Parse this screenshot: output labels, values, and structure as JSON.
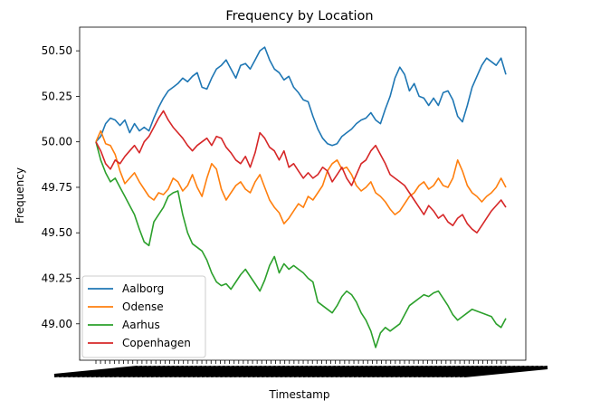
{
  "chart_data": {
    "type": "line",
    "title": "Frequency by Location",
    "xlabel": "Timestamp",
    "ylabel": "Frequency",
    "ylim": [
      48.8,
      50.63
    ],
    "yticks": [
      "49.00",
      "49.25",
      "49.50",
      "49.75",
      "50.00",
      "50.25",
      "50.50"
    ],
    "x_tick_labels_note": "dense unreadable timestamp tick labels",
    "grid": false,
    "legend_position": "lower-left",
    "series": [
      {
        "name": "Aalborg",
        "color": "#1f77b4",
        "values": [
          50.0,
          50.03,
          50.1,
          50.13,
          50.12,
          50.09,
          50.12,
          50.05,
          50.1,
          50.06,
          50.08,
          50.06,
          50.13,
          50.19,
          50.24,
          50.28,
          50.3,
          50.32,
          50.35,
          50.33,
          50.36,
          50.38,
          50.3,
          50.29,
          50.35,
          50.4,
          50.42,
          50.45,
          50.4,
          50.35,
          50.42,
          50.43,
          50.4,
          50.45,
          50.5,
          50.52,
          50.45,
          50.4,
          50.38,
          50.34,
          50.36,
          50.3,
          50.27,
          50.23,
          50.22,
          50.14,
          50.07,
          50.02,
          49.99,
          49.98,
          49.99,
          50.03,
          50.05,
          50.07,
          50.1,
          50.12,
          50.13,
          50.16,
          50.12,
          50.1,
          50.18,
          50.25,
          50.35,
          50.41,
          50.37,
          50.28,
          50.32,
          50.25,
          50.24,
          50.2,
          50.24,
          50.2,
          50.27,
          50.28,
          50.23,
          50.14,
          50.11,
          50.2,
          50.3,
          50.36,
          50.42,
          50.46,
          50.44,
          50.42,
          50.46,
          50.37
        ]
      },
      {
        "name": "Odense",
        "color": "#ff7f0e",
        "values": [
          50.0,
          50.06,
          49.99,
          49.98,
          49.93,
          49.84,
          49.77,
          49.8,
          49.83,
          49.78,
          49.74,
          49.7,
          49.68,
          49.72,
          49.71,
          49.74,
          49.8,
          49.78,
          49.73,
          49.76,
          49.82,
          49.75,
          49.7,
          49.8,
          49.88,
          49.85,
          49.74,
          49.68,
          49.72,
          49.76,
          49.78,
          49.74,
          49.72,
          49.78,
          49.82,
          49.75,
          49.68,
          49.64,
          49.61,
          49.55,
          49.58,
          49.62,
          49.66,
          49.64,
          49.7,
          49.68,
          49.72,
          49.76,
          49.84,
          49.88,
          49.9,
          49.85,
          49.86,
          49.82,
          49.76,
          49.73,
          49.75,
          49.78,
          49.72,
          49.7,
          49.67,
          49.63,
          49.6,
          49.62,
          49.66,
          49.7,
          49.72,
          49.76,
          49.78,
          49.74,
          49.76,
          49.8,
          49.76,
          49.75,
          49.8,
          49.9,
          49.84,
          49.76,
          49.72,
          49.7,
          49.67,
          49.7,
          49.72,
          49.75,
          49.8,
          49.75
        ]
      },
      {
        "name": "Aarhus",
        "color": "#2ca02c",
        "values": [
          50.0,
          49.9,
          49.83,
          49.78,
          49.8,
          49.75,
          49.7,
          49.65,
          49.6,
          49.52,
          49.45,
          49.43,
          49.56,
          49.6,
          49.64,
          49.7,
          49.72,
          49.73,
          49.6,
          49.5,
          49.44,
          49.42,
          49.4,
          49.35,
          49.28,
          49.23,
          49.21,
          49.22,
          49.19,
          49.23,
          49.27,
          49.3,
          49.26,
          49.22,
          49.18,
          49.24,
          49.32,
          49.37,
          49.28,
          49.33,
          49.3,
          49.32,
          49.3,
          49.28,
          49.25,
          49.23,
          49.12,
          49.1,
          49.08,
          49.06,
          49.1,
          49.15,
          49.18,
          49.16,
          49.12,
          49.06,
          49.02,
          48.96,
          48.87,
          48.95,
          48.98,
          48.96,
          48.98,
          49.0,
          49.05,
          49.1,
          49.12,
          49.14,
          49.16,
          49.15,
          49.17,
          49.18,
          49.14,
          49.1,
          49.05,
          49.02,
          49.04,
          49.06,
          49.08,
          49.07,
          49.06,
          49.05,
          49.04,
          49.0,
          48.98,
          49.03
        ]
      },
      {
        "name": "Copenhagen",
        "color": "#d62728",
        "values": [
          50.0,
          49.95,
          49.88,
          49.85,
          49.9,
          49.88,
          49.92,
          49.95,
          49.98,
          49.94,
          50.0,
          50.03,
          50.08,
          50.13,
          50.17,
          50.12,
          50.08,
          50.05,
          50.02,
          49.98,
          49.95,
          49.98,
          50.0,
          50.02,
          49.98,
          50.03,
          50.02,
          49.97,
          49.94,
          49.9,
          49.88,
          49.92,
          49.86,
          49.94,
          50.05,
          50.02,
          49.97,
          49.95,
          49.9,
          49.95,
          49.86,
          49.88,
          49.84,
          49.8,
          49.83,
          49.8,
          49.82,
          49.86,
          49.84,
          49.78,
          49.82,
          49.86,
          49.8,
          49.76,
          49.82,
          49.88,
          49.9,
          49.95,
          49.98,
          49.93,
          49.88,
          49.82,
          49.8,
          49.78,
          49.76,
          49.72,
          49.68,
          49.64,
          49.6,
          49.65,
          49.62,
          49.58,
          49.6,
          49.56,
          49.54,
          49.58,
          49.6,
          49.55,
          49.52,
          49.5,
          49.54,
          49.58,
          49.62,
          49.65,
          49.68,
          49.64
        ]
      }
    ]
  }
}
